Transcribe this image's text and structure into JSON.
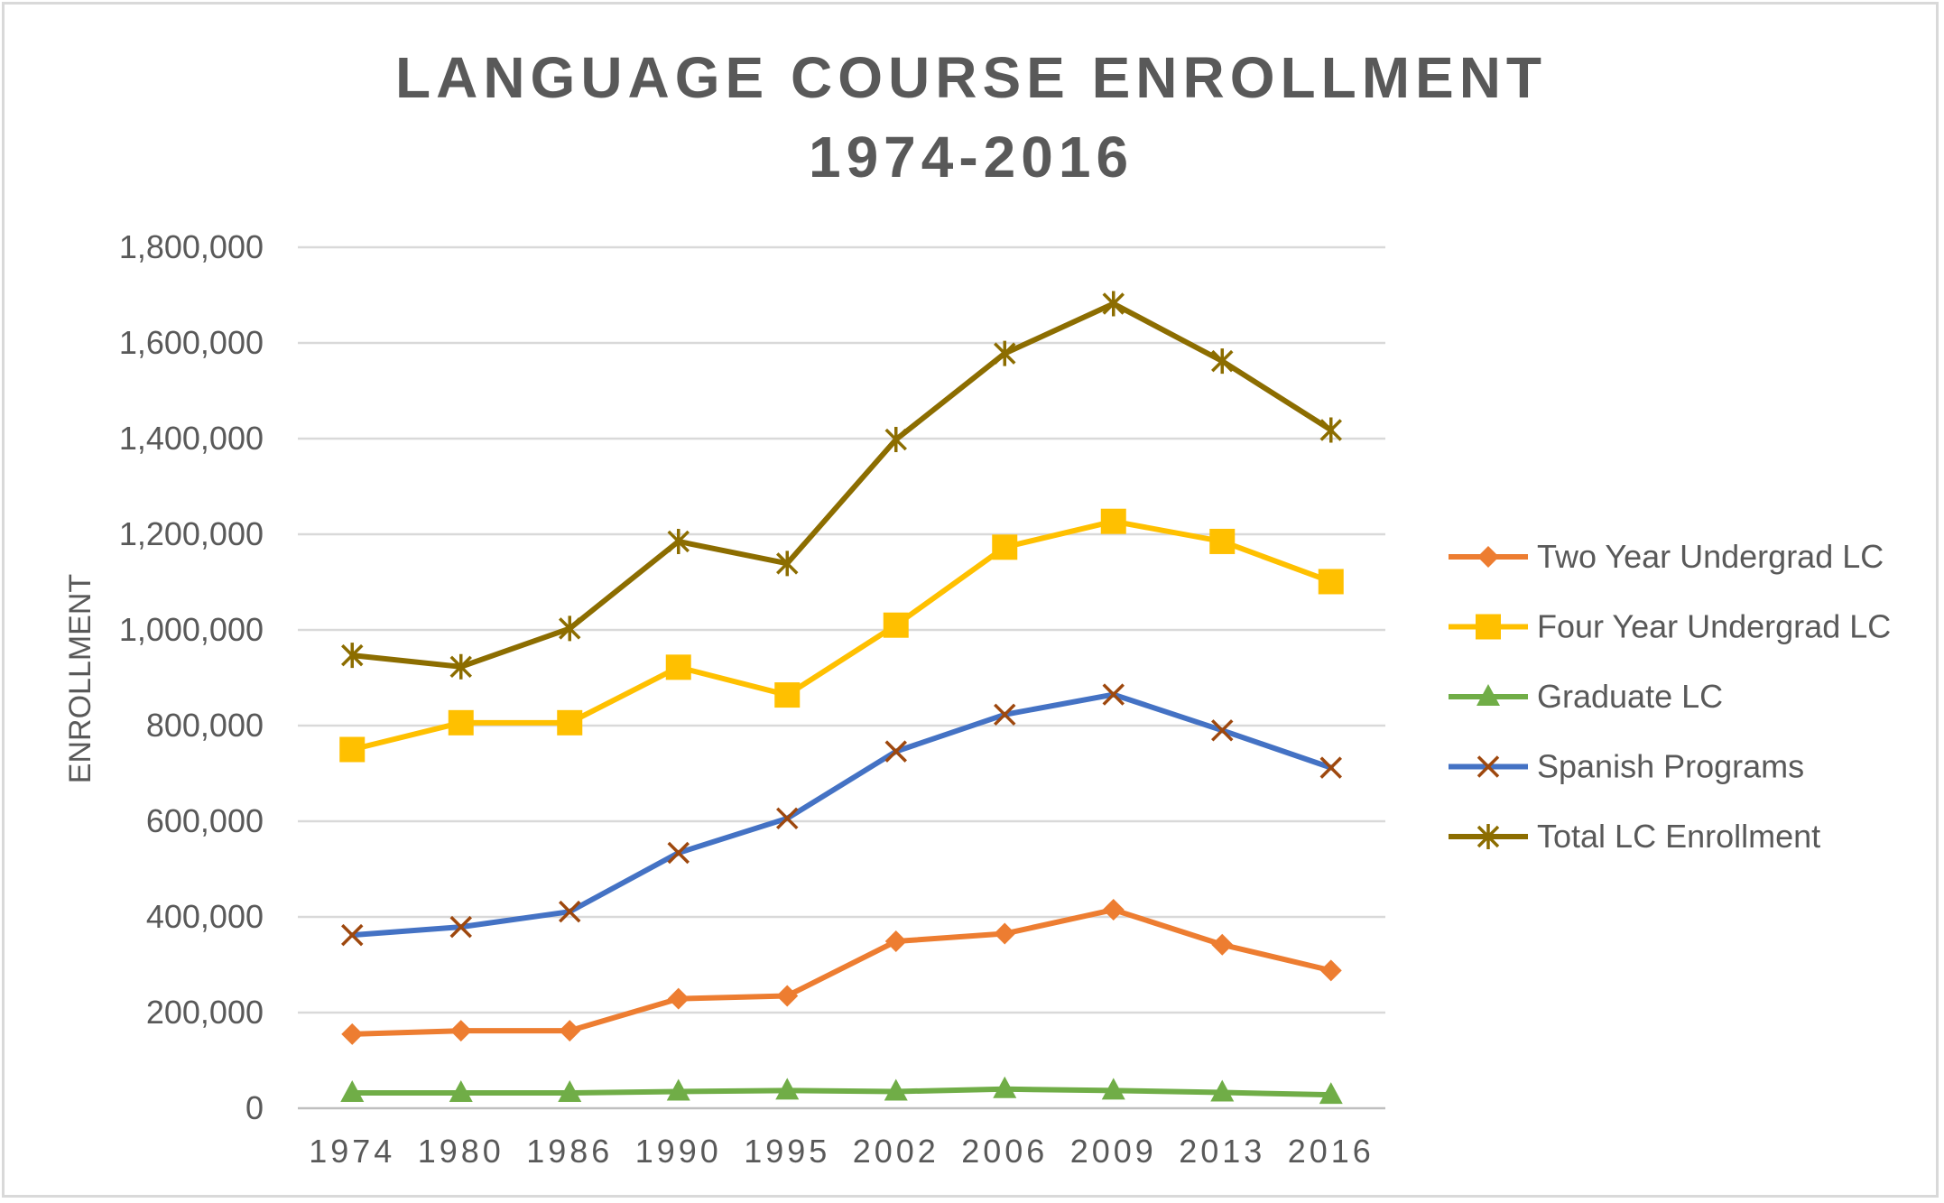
{
  "chart_data": {
    "type": "line",
    "title_line1": "LANGUAGE COURSE ENROLLMENT",
    "title_line2": "1974-2016",
    "xlabel": "",
    "ylabel": "ENROLLMENT",
    "categories": [
      "1974",
      "1980",
      "1986",
      "1990",
      "1995",
      "2002",
      "2006",
      "2009",
      "2013",
      "2016"
    ],
    "ylim": [
      0,
      1800000
    ],
    "yticks": [
      0,
      200000,
      400000,
      600000,
      800000,
      1000000,
      1200000,
      1400000,
      1600000,
      1800000
    ],
    "ytick_labels": [
      "0",
      "200,000",
      "400,000",
      "600,000",
      "800,000",
      "1,000,000",
      "1,200,000",
      "1,400,000",
      "1,600,000",
      "1,800,000"
    ],
    "grid": "horizontal",
    "legend_position": "right",
    "series": [
      {
        "name": "Two Year Undergrad LC",
        "color": "#ed7d31",
        "marker": "diamond",
        "values": [
          155000,
          162000,
          162000,
          229000,
          235000,
          349000,
          365000,
          415000,
          342000,
          288000
        ]
      },
      {
        "name": "Four Year Undergrad LC",
        "color": "#ffc000",
        "marker": "square",
        "values": [
          750000,
          806000,
          806000,
          922000,
          864000,
          1010000,
          1173000,
          1227000,
          1185000,
          1101000
        ]
      },
      {
        "name": "Graduate LC",
        "color": "#70ad47",
        "marker": "triangle",
        "values": [
          32000,
          32000,
          32000,
          35000,
          37000,
          35000,
          40000,
          37000,
          33000,
          28000
        ]
      },
      {
        "name": "Spanish Programs",
        "color": "#4472c4",
        "marker": "x",
        "marker_color": "#9e480e",
        "values": [
          362000,
          379000,
          411000,
          534000,
          606000,
          746000,
          823000,
          865000,
          790000,
          712000
        ]
      },
      {
        "name": "Total LC Enrollment",
        "color": "#8c6d00",
        "marker": "star",
        "values": [
          947000,
          923000,
          1003000,
          1185000,
          1139000,
          1398000,
          1578000,
          1682000,
          1562000,
          1418000
        ]
      }
    ]
  }
}
